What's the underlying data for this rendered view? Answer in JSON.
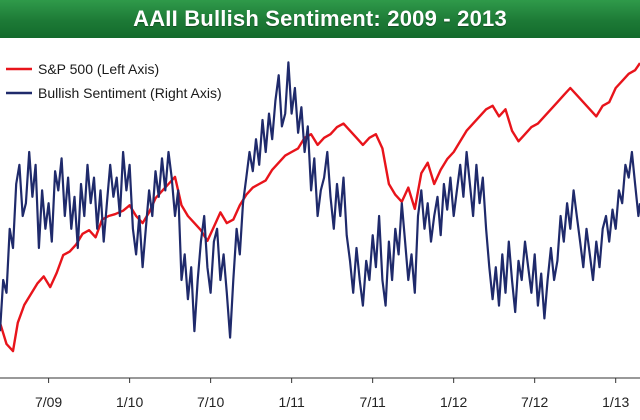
{
  "chart_data": {
    "type": "line",
    "title": "AAII Bullish Sentiment: 2009 - 2013",
    "legend_position": "top-left",
    "grid": false,
    "x_tick_labels": [
      "7/09",
      "1/10",
      "7/10",
      "1/11",
      "7/11",
      "1/12",
      "7/12",
      "1/13"
    ],
    "x_range": [
      2009.2,
      2013.15
    ],
    "left_axis_range": [
      650,
      1550
    ],
    "right_axis_range": [
      15,
      65
    ],
    "series": [
      {
        "name": "S&P 500 (Left Axis)",
        "axis": "left",
        "color": "#e8141b",
        "points": [
          [
            2009.2,
            800
          ],
          [
            2009.24,
            740
          ],
          [
            2009.28,
            720
          ],
          [
            2009.31,
            800
          ],
          [
            2009.35,
            850
          ],
          [
            2009.39,
            880
          ],
          [
            2009.43,
            910
          ],
          [
            2009.47,
            930
          ],
          [
            2009.51,
            900
          ],
          [
            2009.55,
            940
          ],
          [
            2009.59,
            990
          ],
          [
            2009.63,
            1000
          ],
          [
            2009.67,
            1020
          ],
          [
            2009.71,
            1050
          ],
          [
            2009.75,
            1060
          ],
          [
            2009.79,
            1040
          ],
          [
            2009.83,
            1090
          ],
          [
            2009.87,
            1100
          ],
          [
            2009.91,
            1105
          ],
          [
            2009.96,
            1115
          ],
          [
            2010.0,
            1130
          ],
          [
            2010.04,
            1100
          ],
          [
            2010.08,
            1080
          ],
          [
            2010.12,
            1110
          ],
          [
            2010.16,
            1150
          ],
          [
            2010.2,
            1170
          ],
          [
            2010.24,
            1190
          ],
          [
            2010.28,
            1210
          ],
          [
            2010.32,
            1130
          ],
          [
            2010.36,
            1100
          ],
          [
            2010.4,
            1080
          ],
          [
            2010.44,
            1060
          ],
          [
            2010.48,
            1030
          ],
          [
            2010.52,
            1070
          ],
          [
            2010.56,
            1110
          ],
          [
            2010.6,
            1080
          ],
          [
            2010.64,
            1090
          ],
          [
            2010.68,
            1130
          ],
          [
            2010.72,
            1160
          ],
          [
            2010.76,
            1180
          ],
          [
            2010.8,
            1190
          ],
          [
            2010.84,
            1200
          ],
          [
            2010.88,
            1230
          ],
          [
            2010.92,
            1250
          ],
          [
            2010.96,
            1270
          ],
          [
            2011.0,
            1280
          ],
          [
            2011.04,
            1290
          ],
          [
            2011.08,
            1320
          ],
          [
            2011.12,
            1330
          ],
          [
            2011.16,
            1300
          ],
          [
            2011.2,
            1320
          ],
          [
            2011.24,
            1330
          ],
          [
            2011.28,
            1350
          ],
          [
            2011.32,
            1360
          ],
          [
            2011.36,
            1340
          ],
          [
            2011.4,
            1320
          ],
          [
            2011.44,
            1300
          ],
          [
            2011.48,
            1320
          ],
          [
            2011.52,
            1330
          ],
          [
            2011.56,
            1290
          ],
          [
            2011.6,
            1190
          ],
          [
            2011.64,
            1160
          ],
          [
            2011.68,
            1140
          ],
          [
            2011.72,
            1180
          ],
          [
            2011.76,
            1120
          ],
          [
            2011.8,
            1220
          ],
          [
            2011.84,
            1250
          ],
          [
            2011.88,
            1190
          ],
          [
            2011.92,
            1230
          ],
          [
            2011.96,
            1260
          ],
          [
            2012.0,
            1280
          ],
          [
            2012.04,
            1310
          ],
          [
            2012.08,
            1340
          ],
          [
            2012.12,
            1360
          ],
          [
            2012.16,
            1380
          ],
          [
            2012.2,
            1400
          ],
          [
            2012.24,
            1410
          ],
          [
            2012.28,
            1380
          ],
          [
            2012.32,
            1400
          ],
          [
            2012.36,
            1340
          ],
          [
            2012.4,
            1310
          ],
          [
            2012.44,
            1330
          ],
          [
            2012.48,
            1350
          ],
          [
            2012.52,
            1360
          ],
          [
            2012.56,
            1380
          ],
          [
            2012.6,
            1400
          ],
          [
            2012.64,
            1420
          ],
          [
            2012.68,
            1440
          ],
          [
            2012.72,
            1460
          ],
          [
            2012.76,
            1440
          ],
          [
            2012.8,
            1420
          ],
          [
            2012.84,
            1400
          ],
          [
            2012.88,
            1380
          ],
          [
            2012.92,
            1410
          ],
          [
            2012.96,
            1420
          ],
          [
            2013.0,
            1460
          ],
          [
            2013.04,
            1480
          ],
          [
            2013.08,
            1500
          ],
          [
            2013.12,
            1510
          ],
          [
            2013.15,
            1530
          ]
        ]
      },
      {
        "name": "Bullish Sentiment (Right Axis)",
        "axis": "right",
        "color": "#1f2a6b",
        "points": [
          [
            2009.2,
            22
          ],
          [
            2009.22,
            30
          ],
          [
            2009.24,
            28
          ],
          [
            2009.26,
            38
          ],
          [
            2009.28,
            35
          ],
          [
            2009.3,
            45
          ],
          [
            2009.32,
            48
          ],
          [
            2009.34,
            40
          ],
          [
            2009.36,
            42
          ],
          [
            2009.38,
            50
          ],
          [
            2009.4,
            43
          ],
          [
            2009.42,
            48
          ],
          [
            2009.44,
            35
          ],
          [
            2009.46,
            44
          ],
          [
            2009.48,
            38
          ],
          [
            2009.5,
            42
          ],
          [
            2009.52,
            36
          ],
          [
            2009.54,
            47
          ],
          [
            2009.56,
            44
          ],
          [
            2009.58,
            49
          ],
          [
            2009.6,
            40
          ],
          [
            2009.62,
            46
          ],
          [
            2009.64,
            38
          ],
          [
            2009.66,
            43
          ],
          [
            2009.68,
            35
          ],
          [
            2009.7,
            45
          ],
          [
            2009.72,
            40
          ],
          [
            2009.74,
            48
          ],
          [
            2009.76,
            42
          ],
          [
            2009.78,
            46
          ],
          [
            2009.8,
            38
          ],
          [
            2009.82,
            44
          ],
          [
            2009.84,
            36
          ],
          [
            2009.86,
            42
          ],
          [
            2009.88,
            48
          ],
          [
            2009.9,
            43
          ],
          [
            2009.92,
            46
          ],
          [
            2009.94,
            40
          ],
          [
            2009.96,
            50
          ],
          [
            2009.98,
            44
          ],
          [
            2010.0,
            48
          ],
          [
            2010.02,
            38
          ],
          [
            2010.04,
            34
          ],
          [
            2010.06,
            40
          ],
          [
            2010.08,
            32
          ],
          [
            2010.1,
            38
          ],
          [
            2010.12,
            44
          ],
          [
            2010.14,
            40
          ],
          [
            2010.16,
            47
          ],
          [
            2010.18,
            43
          ],
          [
            2010.2,
            49
          ],
          [
            2010.22,
            44
          ],
          [
            2010.24,
            50
          ],
          [
            2010.26,
            46
          ],
          [
            2010.28,
            40
          ],
          [
            2010.3,
            44
          ],
          [
            2010.32,
            30
          ],
          [
            2010.34,
            34
          ],
          [
            2010.36,
            27
          ],
          [
            2010.38,
            32
          ],
          [
            2010.4,
            22
          ],
          [
            2010.42,
            30
          ],
          [
            2010.44,
            36
          ],
          [
            2010.46,
            40
          ],
          [
            2010.48,
            32
          ],
          [
            2010.5,
            28
          ],
          [
            2010.52,
            36
          ],
          [
            2010.54,
            38
          ],
          [
            2010.56,
            30
          ],
          [
            2010.58,
            34
          ],
          [
            2010.6,
            28
          ],
          [
            2010.62,
            21
          ],
          [
            2010.64,
            30
          ],
          [
            2010.66,
            38
          ],
          [
            2010.68,
            34
          ],
          [
            2010.7,
            42
          ],
          [
            2010.72,
            46
          ],
          [
            2010.74,
            50
          ],
          [
            2010.76,
            47
          ],
          [
            2010.78,
            52
          ],
          [
            2010.8,
            48
          ],
          [
            2010.82,
            55
          ],
          [
            2010.84,
            50
          ],
          [
            2010.86,
            56
          ],
          [
            2010.88,
            52
          ],
          [
            2010.9,
            58
          ],
          [
            2010.92,
            62
          ],
          [
            2010.94,
            54
          ],
          [
            2010.96,
            56
          ],
          [
            2010.98,
            64
          ],
          [
            2011.0,
            56
          ],
          [
            2011.02,
            60
          ],
          [
            2011.04,
            53
          ],
          [
            2011.06,
            57
          ],
          [
            2011.08,
            50
          ],
          [
            2011.1,
            54
          ],
          [
            2011.12,
            44
          ],
          [
            2011.14,
            49
          ],
          [
            2011.16,
            40
          ],
          [
            2011.18,
            44
          ],
          [
            2011.2,
            46
          ],
          [
            2011.22,
            50
          ],
          [
            2011.24,
            43
          ],
          [
            2011.26,
            38
          ],
          [
            2011.28,
            45
          ],
          [
            2011.3,
            40
          ],
          [
            2011.32,
            46
          ],
          [
            2011.34,
            37
          ],
          [
            2011.36,
            33
          ],
          [
            2011.38,
            28
          ],
          [
            2011.4,
            35
          ],
          [
            2011.42,
            30
          ],
          [
            2011.44,
            26
          ],
          [
            2011.46,
            33
          ],
          [
            2011.48,
            30
          ],
          [
            2011.5,
            37
          ],
          [
            2011.52,
            32
          ],
          [
            2011.54,
            40
          ],
          [
            2011.56,
            30
          ],
          [
            2011.58,
            26
          ],
          [
            2011.6,
            36
          ],
          [
            2011.62,
            30
          ],
          [
            2011.64,
            38
          ],
          [
            2011.66,
            34
          ],
          [
            2011.68,
            42
          ],
          [
            2011.7,
            36
          ],
          [
            2011.72,
            30
          ],
          [
            2011.74,
            34
          ],
          [
            2011.76,
            28
          ],
          [
            2011.78,
            40
          ],
          [
            2011.8,
            44
          ],
          [
            2011.82,
            38
          ],
          [
            2011.84,
            42
          ],
          [
            2011.86,
            36
          ],
          [
            2011.88,
            40
          ],
          [
            2011.9,
            43
          ],
          [
            2011.92,
            37
          ],
          [
            2011.94,
            45
          ],
          [
            2011.96,
            41
          ],
          [
            2011.98,
            46
          ],
          [
            2012.0,
            40
          ],
          [
            2012.02,
            44
          ],
          [
            2012.04,
            48
          ],
          [
            2012.06,
            43
          ],
          [
            2012.08,
            50
          ],
          [
            2012.1,
            45
          ],
          [
            2012.12,
            40
          ],
          [
            2012.14,
            48
          ],
          [
            2012.16,
            42
          ],
          [
            2012.18,
            46
          ],
          [
            2012.2,
            38
          ],
          [
            2012.22,
            32
          ],
          [
            2012.24,
            27
          ],
          [
            2012.26,
            32
          ],
          [
            2012.28,
            26
          ],
          [
            2012.3,
            34
          ],
          [
            2012.32,
            28
          ],
          [
            2012.34,
            36
          ],
          [
            2012.36,
            30
          ],
          [
            2012.38,
            25
          ],
          [
            2012.4,
            33
          ],
          [
            2012.42,
            30
          ],
          [
            2012.44,
            36
          ],
          [
            2012.46,
            32
          ],
          [
            2012.48,
            28
          ],
          [
            2012.5,
            34
          ],
          [
            2012.52,
            26
          ],
          [
            2012.54,
            31
          ],
          [
            2012.56,
            24
          ],
          [
            2012.58,
            30
          ],
          [
            2012.6,
            35
          ],
          [
            2012.62,
            30
          ],
          [
            2012.64,
            33
          ],
          [
            2012.66,
            40
          ],
          [
            2012.68,
            36
          ],
          [
            2012.7,
            42
          ],
          [
            2012.72,
            38
          ],
          [
            2012.74,
            44
          ],
          [
            2012.76,
            40
          ],
          [
            2012.78,
            36
          ],
          [
            2012.8,
            32
          ],
          [
            2012.82,
            38
          ],
          [
            2012.84,
            34
          ],
          [
            2012.86,
            30
          ],
          [
            2012.88,
            36
          ],
          [
            2012.9,
            32
          ],
          [
            2012.92,
            38
          ],
          [
            2012.94,
            40
          ],
          [
            2012.96,
            36
          ],
          [
            2012.98,
            41
          ],
          [
            2013.0,
            38
          ],
          [
            2013.02,
            44
          ],
          [
            2013.04,
            42
          ],
          [
            2013.06,
            48
          ],
          [
            2013.08,
            46
          ],
          [
            2013.1,
            50
          ],
          [
            2013.12,
            45
          ],
          [
            2013.14,
            40
          ],
          [
            2013.15,
            42
          ]
        ]
      }
    ]
  }
}
